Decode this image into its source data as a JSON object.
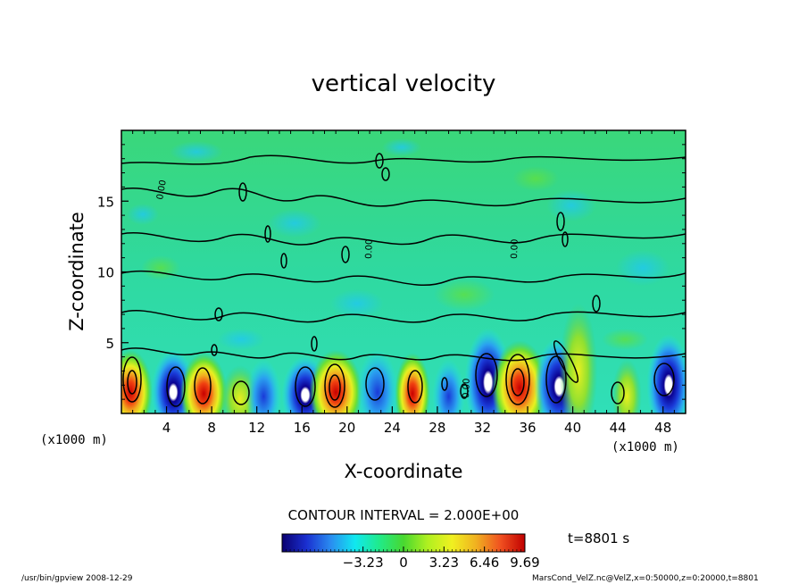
{
  "chart_data": {
    "type": "heatmap",
    "title": "vertical velocity",
    "xlabel": "X-coordinate",
    "ylabel": "Z-coordinate",
    "x_unit_label": "(x1000 m)",
    "y_unit_label": "(x1000 m)",
    "xlim": [
      0,
      50
    ],
    "ylim": [
      0,
      20
    ],
    "x_ticks": [
      4,
      8,
      12,
      16,
      20,
      24,
      28,
      32,
      36,
      40,
      44,
      48
    ],
    "y_ticks": [
      5,
      10,
      15
    ],
    "contour_interval_text": "CONTOUR INTERVAL = 2.000E+00",
    "contour_label": "0.00",
    "time_label": "t=8801 s",
    "colorbar": {
      "range": [
        -9.69,
        9.69
      ],
      "tick_values": [
        -3.23,
        0,
        3.23,
        6.46,
        9.69
      ],
      "tick_labels": [
        "−3.23",
        "0",
        "3.23",
        "6.46",
        "9.69"
      ],
      "colors": [
        "#0a0070",
        "#1a2fd0",
        "#2a8cf0",
        "#10e8f0",
        "#20ea8a",
        "#48d830",
        "#b0f020",
        "#f0f020",
        "#f0b020",
        "#f05020",
        "#c00000"
      ]
    },
    "features": [
      {
        "x": 0.8,
        "z": 1.5,
        "w": 1.5,
        "type": "updraft",
        "peak": 8.5
      },
      {
        "x": 4.6,
        "z": 1.5,
        "w": -1.5,
        "type": "downdraft",
        "peak": -9.0
      },
      {
        "x": 7.3,
        "z": 1.4,
        "w": 1.6,
        "type": "updraft",
        "peak": 7.0
      },
      {
        "x": 10.5,
        "z": 1.0,
        "w": 1.3,
        "type": "updraft",
        "peak": 4.0
      },
      {
        "x": 12.6,
        "z": 1.2,
        "w": -1.2,
        "type": "downdraft",
        "peak": -5.0
      },
      {
        "x": 16.3,
        "z": 1.3,
        "w": -1.6,
        "type": "downdraft",
        "peak": -7.0
      },
      {
        "x": 19.0,
        "z": 1.5,
        "w": 1.8,
        "type": "updraft",
        "peak": 9.0
      },
      {
        "x": 22.7,
        "z": 1.5,
        "w": -1.4,
        "type": "downdraft",
        "peak": -5.0
      },
      {
        "x": 25.8,
        "z": 1.4,
        "w": 1.2,
        "type": "updraft",
        "peak": 6.0
      },
      {
        "x": 29.0,
        "z": 1.2,
        "w": -1.1,
        "type": "downdraft",
        "peak": -4.0
      },
      {
        "x": 32.5,
        "z": 2.2,
        "w": -1.6,
        "type": "downdraft",
        "peak": -9.0
      },
      {
        "x": 35.3,
        "z": 1.8,
        "w": 1.9,
        "type": "updraft",
        "peak": 9.69
      },
      {
        "x": 38.8,
        "z": 1.9,
        "w": -1.7,
        "type": "downdraft",
        "peak": -9.69
      },
      {
        "x": 40.5,
        "z": 3.0,
        "w": 1.3,
        "type": "updraft",
        "peak": 5.0
      },
      {
        "x": 44.8,
        "z": 1.2,
        "w": 1.0,
        "type": "updraft",
        "peak": 3.0
      },
      {
        "x": 48.5,
        "z": 2.0,
        "w": -1.5,
        "type": "downdraft",
        "peak": -8.0
      }
    ]
  },
  "footer": {
    "left": "/usr/bin/gpview   2008-12-29",
    "right": "MarsCond_VelZ.nc@VelZ,x=0:50000,z=0:20000,t=8801"
  }
}
